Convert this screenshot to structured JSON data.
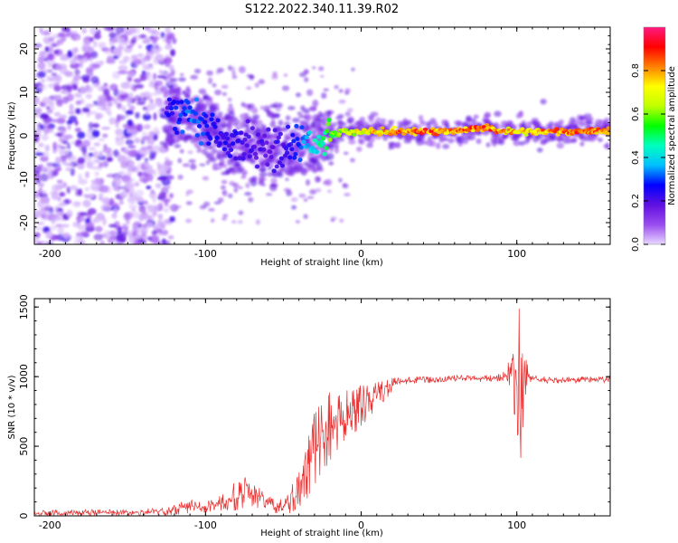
{
  "figure": {
    "title": "S122.2022.340.11.39.R02"
  },
  "chart_data": [
    {
      "type": "heatmap",
      "panel": "top",
      "title": "S122.2022.340.11.39.R02",
      "xlabel": "Height of straight line (km)",
      "ylabel": "Frequency (Hz)",
      "xlim": [
        -210,
        160
      ],
      "ylim": [
        -25,
        25
      ],
      "x_ticks": [
        -200,
        -100,
        0,
        100
      ],
      "x_tick_labels": [
        "-200",
        "-100",
        "0",
        "100"
      ],
      "y_ticks": [
        -20,
        -10,
        0,
        10,
        20
      ],
      "y_tick_labels": [
        "-20",
        "-10",
        "0",
        "10",
        "20"
      ],
      "colorbar": {
        "label": "Normalized spectral amplitude",
        "range": [
          0,
          1
        ],
        "ticks": [
          0.0,
          0.2,
          0.4,
          0.6,
          0.8
        ],
        "tick_labels": [
          "0.0",
          "0.2",
          "0.4",
          "0.6",
          "0.8"
        ],
        "colors": [
          "#e8d8ff",
          "#9a4cf0",
          "#6010e0",
          "#0000ff",
          "#00bfff",
          "#00ffc0",
          "#00ff00",
          "#c0ff00",
          "#ffff00",
          "#ff8000",
          "#ff0000",
          "#ff1a80"
        ]
      },
      "ridge": {
        "x": [
          -125,
          -110,
          -100,
          -90,
          -80,
          -70,
          -60,
          -50,
          -40,
          -30,
          -20,
          -10,
          0,
          20,
          40,
          60,
          80,
          90,
          100,
          120,
          140,
          160
        ],
        "freq": [
          5,
          5,
          3,
          -1,
          -2,
          -2,
          -3,
          -4,
          -2,
          -1,
          0,
          1,
          1,
          1,
          1,
          1,
          2,
          1,
          1,
          1,
          1,
          1
        ],
        "amplitude": [
          0.25,
          0.35,
          0.3,
          0.25,
          0.25,
          0.22,
          0.22,
          0.22,
          0.3,
          0.45,
          0.6,
          0.7,
          0.75,
          0.85,
          0.9,
          0.88,
          0.9,
          0.85,
          0.8,
          0.85,
          0.9,
          0.9
        ]
      },
      "noise_region": {
        "x_from": -210,
        "x_to": -125,
        "description": "broadband low-amplitude speckle"
      }
    },
    {
      "type": "line",
      "panel": "bottom",
      "xlabel": "Height of straight line (km)",
      "ylabel": "SNR (10 * v/v)",
      "xlim": [
        -210,
        160
      ],
      "ylim": [
        0,
        1560
      ],
      "x_ticks": [
        -200,
        -100,
        0,
        100
      ],
      "x_tick_labels": [
        "-200",
        "-100",
        "0",
        "100"
      ],
      "y_ticks": [
        0,
        500,
        1000,
        1500
      ],
      "y_tick_labels": [
        "0",
        "500",
        "1000",
        "1500"
      ],
      "series": [
        {
          "name": "SNR",
          "color": "#e83030",
          "x": [
            -210,
            -180,
            -150,
            -125,
            -110,
            -100,
            -90,
            -80,
            -75,
            -70,
            -65,
            -60,
            -55,
            -50,
            -45,
            -40,
            -35,
            -30,
            -25,
            -20,
            -15,
            -10,
            -5,
            0,
            5,
            10,
            15,
            20,
            25,
            30,
            40,
            60,
            80,
            90,
            95,
            100,
            102,
            105,
            110,
            120,
            140,
            160
          ],
          "values": [
            20,
            22,
            25,
            30,
            70,
            70,
            90,
            140,
            180,
            150,
            130,
            100,
            60,
            70,
            110,
            200,
            330,
            470,
            560,
            620,
            680,
            690,
            740,
            780,
            820,
            860,
            900,
            940,
            960,
            975,
            980,
            985,
            985,
            990,
            1000,
            1050,
            600,
            1000,
            980,
            975,
            980,
            980
          ],
          "envelope_min": [
            0,
            0,
            0,
            0,
            20,
            20,
            30,
            40,
            60,
            40,
            40,
            30,
            20,
            20,
            20,
            50,
            120,
            200,
            300,
            380,
            470,
            520,
            590,
            640,
            700,
            760,
            830,
            880,
            930,
            950,
            955,
            955,
            960,
            950,
            900,
            650,
            330,
            800,
            940,
            950,
            950,
            950
          ],
          "envelope_max": [
            40,
            45,
            50,
            55,
            130,
            110,
            160,
            260,
            280,
            240,
            220,
            170,
            110,
            130,
            220,
            360,
            560,
            760,
            850,
            900,
            920,
            920,
            930,
            940,
            950,
            960,
            975,
            990,
            1000,
            1000,
            1005,
            1010,
            1010,
            1030,
            1130,
            1560,
            1560,
            1150,
            1010,
            1000,
            1000,
            1000
          ]
        }
      ]
    }
  ]
}
